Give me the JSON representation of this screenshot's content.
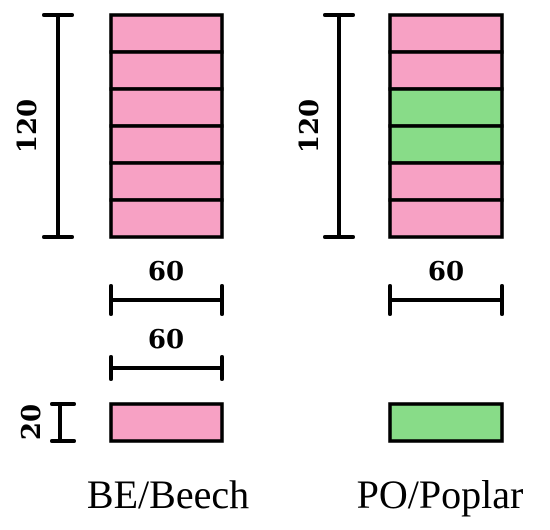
{
  "colors": {
    "beech_fill": "#F7A1C4",
    "poplar_fill": "#88DC88",
    "stroke": "#000000"
  },
  "panels": [
    {
      "id": "beech",
      "caption": "BE/Beech",
      "height_label": "120",
      "width_label": "60",
      "lamellae": [
        "BE",
        "BE",
        "BE",
        "BE",
        "BE",
        "BE"
      ]
    },
    {
      "id": "poplar",
      "caption": "PO/Poplar",
      "height_label": "120",
      "width_label": "60",
      "lamellae": [
        "BE",
        "BE",
        "PO",
        "PO",
        "BE",
        "BE"
      ]
    }
  ],
  "lamella_detail": {
    "width_label": "60",
    "thickness_label": "20"
  }
}
